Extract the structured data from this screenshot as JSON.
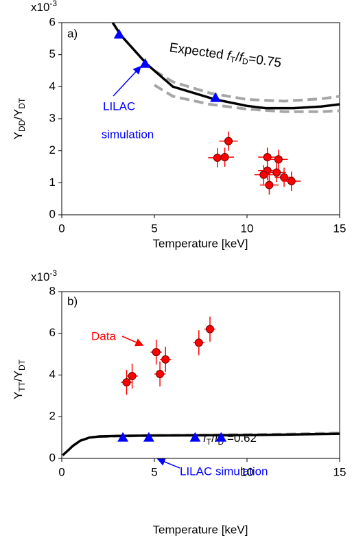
{
  "chart_data": [
    {
      "type": "scatter",
      "multiplier": [
        "x10",
        "-3"
      ],
      "xlabel": "Temperature [keV]",
      "ylabel": [
        "Y",
        "DD",
        "/Y",
        "DT"
      ],
      "xlim": [
        0,
        15
      ],
      "xticks": [
        0,
        5,
        10,
        15
      ],
      "ylim": [
        0,
        6
      ],
      "yticks": [
        0,
        1,
        2,
        3,
        4,
        5,
        6
      ],
      "annotations": {
        "panel": "a)",
        "expected": [
          "Expected ",
          "f",
          "T",
          "/",
          "f",
          "D",
          "=0.75"
        ],
        "lilac": [
          "LILAC",
          "simulation"
        ]
      },
      "series": [
        {
          "style": "dashed",
          "color": "#a6a6a6",
          "x": [
            5,
            6,
            8,
            10,
            12,
            14,
            15
          ],
          "values": [
            4.5,
            4.15,
            3.8,
            3.6,
            3.55,
            3.62,
            3.7
          ]
        },
        {
          "style": "dashed",
          "color": "#a6a6a6",
          "x": [
            5,
            6,
            8,
            10,
            12,
            14,
            15
          ],
          "values": [
            4.05,
            3.7,
            3.45,
            3.3,
            3.22,
            3.22,
            3.25
          ]
        },
        {
          "style": "line",
          "color": "#000000",
          "x": [
            2.75,
            3.2,
            4.6,
            6,
            8.3,
            10,
            11,
            12.5,
            14,
            15
          ],
          "values": [
            6,
            5.6,
            4.7,
            4.0,
            3.6,
            3.4,
            3.33,
            3.33,
            3.38,
            3.45
          ]
        },
        {
          "style": "triangle",
          "color": "#0000ff",
          "x": [
            3.1,
            4.5,
            8.3
          ],
          "values": [
            5.63,
            4.72,
            3.65
          ]
        },
        {
          "style": "errorpoint",
          "color": "#ff0000",
          "x": [
            9.0,
            8.4,
            8.8,
            11.1,
            11.7,
            11.1,
            10.9,
            11.6,
            12.0,
            12.4,
            11.2
          ],
          "values": [
            2.3,
            1.78,
            1.8,
            1.8,
            1.73,
            1.38,
            1.25,
            1.32,
            1.17,
            1.05,
            0.93
          ],
          "xerr": [
            0.5,
            0.5,
            0.5,
            0.5,
            0.5,
            0.5,
            0.5,
            0.5,
            0.5,
            0.5,
            0.5
          ],
          "yerr": [
            0.3,
            0.3,
            0.3,
            0.3,
            0.3,
            0.3,
            0.3,
            0.3,
            0.3,
            0.3,
            0.3
          ]
        }
      ]
    },
    {
      "type": "scatter",
      "multiplier": [
        "x10",
        "-3"
      ],
      "xlabel": "Temperature [keV]",
      "ylabel": [
        "Y",
        "TT",
        "/Y",
        "DT"
      ],
      "xlim": [
        0,
        15
      ],
      "xticks": [
        0,
        5,
        10,
        15
      ],
      "ylim": [
        0,
        8
      ],
      "yticks": [
        0,
        2,
        4,
        6,
        8
      ],
      "annotations": {
        "panel": "b)",
        "data": "Data",
        "ratio": [
          "f",
          "T",
          "/",
          "f",
          "D",
          " =0.62"
        ],
        "lilac": "LILAC simulation"
      },
      "series": [
        {
          "style": "dashed",
          "color": "#a6a6a6",
          "x": [
            2,
            5,
            8,
            10,
            12,
            15
          ],
          "values": [
            1.05,
            1.1,
            1.12,
            1.14,
            1.16,
            1.22
          ]
        },
        {
          "style": "line",
          "color": "#000000",
          "x": [
            0.05,
            0.3,
            0.6,
            1,
            1.5,
            2,
            3,
            5,
            8,
            10,
            12,
            15
          ],
          "values": [
            0.15,
            0.35,
            0.6,
            0.85,
            1.0,
            1.05,
            1.08,
            1.1,
            1.11,
            1.12,
            1.14,
            1.18
          ]
        },
        {
          "style": "triangle",
          "color": "#0000ff",
          "x": [
            3.3,
            4.7,
            7.2,
            8.6
          ],
          "values": [
            1.0,
            1.0,
            1.0,
            1.0
          ]
        },
        {
          "style": "errorpoint",
          "color": "#ff0000",
          "x": [
            3.5,
            3.8,
            5.1,
            5.3,
            5.6,
            7.4,
            8.0
          ],
          "values": [
            3.65,
            3.95,
            5.1,
            4.05,
            4.75,
            5.55,
            6.2
          ],
          "xerr": [
            0.3,
            0.3,
            0.3,
            0.3,
            0.3,
            0.3,
            0.3
          ],
          "yerr": [
            0.6,
            0.6,
            0.6,
            0.6,
            0.6,
            0.6,
            0.6
          ]
        }
      ]
    }
  ]
}
